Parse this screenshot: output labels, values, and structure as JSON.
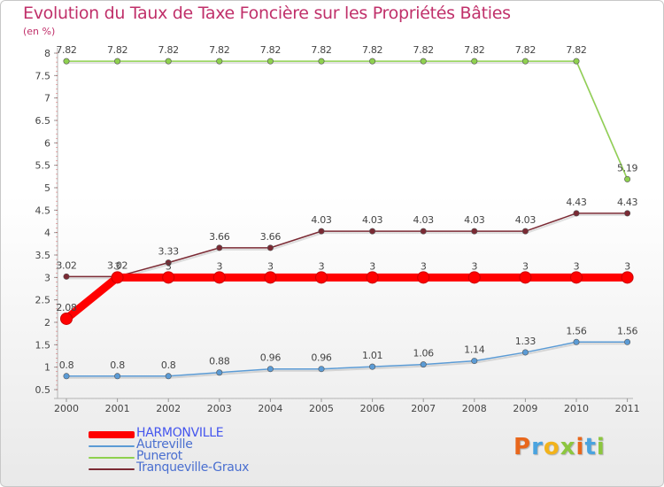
{
  "header": {
    "title": "Evolution du Taux de Taxe Foncière sur les Propriétés Bâties",
    "unit": "(en %)"
  },
  "logo": {
    "letters": [
      "P",
      "r",
      "o",
      "x",
      "i",
      "t",
      "i"
    ],
    "colors": [
      "#e8671c",
      "#4aa3df",
      "#f2b31b",
      "#8cc63f",
      "#e8671c",
      "#4aa3df",
      "#8cc63f"
    ]
  },
  "chart_data": {
    "type": "line",
    "title": "Evolution du Taux de Taxe Foncière sur les Propriétés Bâties",
    "ylabel": "(en %)",
    "xlabel": "",
    "ylim": [
      0.5,
      8
    ],
    "categories": [
      "2000",
      "2001",
      "2002",
      "2003",
      "2004",
      "2005",
      "2006",
      "2007",
      "2008",
      "2009",
      "2010",
      "2011"
    ],
    "yticks": [
      "0.5",
      "1",
      "1.5",
      "2",
      "2.5",
      "3",
      "3.5",
      "4",
      "4.5",
      "5",
      "5.5",
      "6",
      "6.5",
      "7",
      "7.5",
      "8"
    ],
    "series": [
      {
        "name": "Punerot",
        "color": "#8fd14f",
        "style": "thin",
        "values": [
          7.82,
          7.82,
          7.82,
          7.82,
          7.82,
          7.82,
          7.82,
          7.82,
          7.82,
          7.82,
          7.82,
          5.19
        ],
        "labels": [
          "7.82",
          "7.82",
          "7.82",
          "7.82",
          "7.82",
          "7.82",
          "7.82",
          "7.82",
          "7.82",
          "7.82",
          "7.82",
          "5.19"
        ]
      },
      {
        "name": "Tranqueville-Graux",
        "color": "#7b2a34",
        "style": "thin",
        "values": [
          3.02,
          3.02,
          3.33,
          3.66,
          3.66,
          4.03,
          4.03,
          4.03,
          4.03,
          4.03,
          4.43,
          4.43
        ],
        "labels": [
          "3.02",
          "3.02",
          "3.33",
          "3.66",
          "3.66",
          "4.03",
          "4.03",
          "4.03",
          "4.03",
          "4.03",
          "4.43",
          "4.43"
        ]
      },
      {
        "name": "HARMONVILLE",
        "color": "#ff0000",
        "style": "thick",
        "values": [
          2.08,
          3,
          3,
          3,
          3,
          3,
          3,
          3,
          3,
          3,
          3,
          3
        ],
        "labels": [
          "2.08",
          "3",
          "3",
          "3",
          "3",
          "3",
          "3",
          "3",
          "3",
          "3",
          "3",
          "3"
        ]
      },
      {
        "name": "Autreville",
        "color": "#5b9bd5",
        "style": "thin",
        "values": [
          0.8,
          0.8,
          0.8,
          0.88,
          0.96,
          0.96,
          1.01,
          1.06,
          1.14,
          1.33,
          1.56,
          1.56
        ],
        "labels": [
          "0.8",
          "0.8",
          "0.8",
          "0.88",
          "0.96",
          "0.96",
          "1.01",
          "1.06",
          "1.14",
          "1.33",
          "1.56",
          "1.56"
        ]
      }
    ],
    "legend_order": [
      "HARMONVILLE",
      "Autreville",
      "Punerot",
      "Tranqueville-Graux"
    ],
    "legend_position": "bottom-left",
    "grid": false
  }
}
